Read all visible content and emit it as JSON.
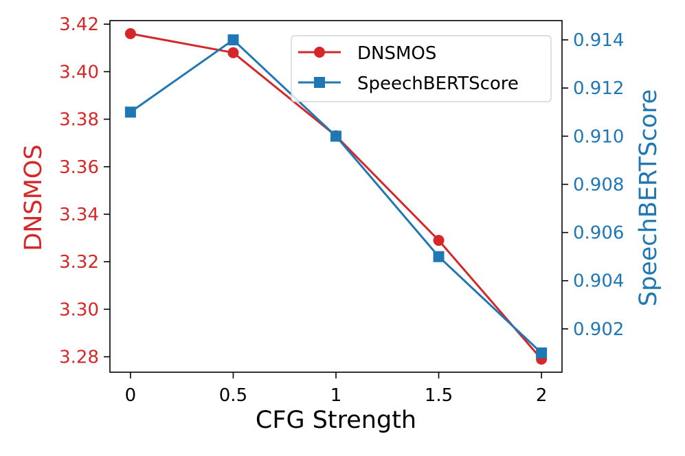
{
  "chart_data": {
    "type": "line",
    "title": "",
    "xlabel": "CFG Strength",
    "x": [
      0,
      0.5,
      1,
      1.5,
      2
    ],
    "x_tick_labels": [
      "0",
      "0.5",
      "1",
      "1.5",
      "2"
    ],
    "xlim": [
      -0.1,
      2.1
    ],
    "y_left": {
      "label": "DNSMOS",
      "color": "#d62728",
      "ylim": [
        3.2735,
        3.4215
      ],
      "ticks": [
        3.28,
        3.3,
        3.32,
        3.34,
        3.36,
        3.38,
        3.4,
        3.42
      ],
      "tick_labels": [
        "3.28",
        "3.30",
        "3.32",
        "3.34",
        "3.36",
        "3.38",
        "3.40",
        "3.42"
      ]
    },
    "y_right": {
      "label": "SpeechBERTScore",
      "color": "#1f77b4",
      "ylim": [
        0.9002,
        0.9148
      ],
      "ticks": [
        0.902,
        0.904,
        0.906,
        0.908,
        0.91,
        0.912,
        0.914
      ],
      "tick_labels": [
        "0.902",
        "0.904",
        "0.906",
        "0.908",
        "0.910",
        "0.912",
        "0.914"
      ]
    },
    "series": [
      {
        "name": "DNSMOS",
        "axis": "left",
        "marker": "circle",
        "color": "#d62728",
        "values": [
          3.416,
          3.408,
          3.373,
          3.329,
          3.279
        ]
      },
      {
        "name": "SpeechBERTScore",
        "axis": "right",
        "marker": "square",
        "color": "#1f77b4",
        "values": [
          0.911,
          0.914,
          0.91,
          0.905,
          0.901
        ]
      }
    ],
    "legend": {
      "position": "top-right",
      "entries": [
        "DNSMOS",
        "SpeechBERTScore"
      ]
    }
  }
}
